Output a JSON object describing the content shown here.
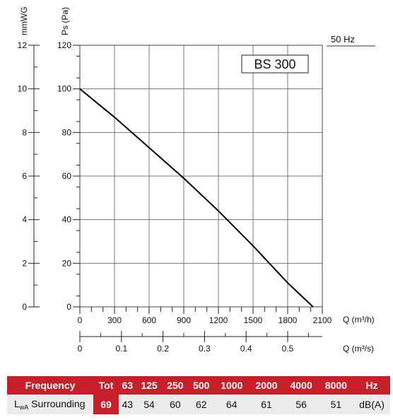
{
  "chart_data": {
    "type": "line",
    "model_label": "BS 300",
    "frequency_label": "50 Hz",
    "axes": {
      "y_pa": {
        "label": "Ps (Pa)",
        "range": [
          0,
          120
        ],
        "ticks": [
          "0",
          "20",
          "40",
          "60",
          "80",
          "100",
          "120"
        ]
      },
      "y_mmwg": {
        "label": "mmWG",
        "range": [
          0,
          12
        ],
        "ticks": [
          "0",
          "2",
          "4",
          "6",
          "8",
          "10",
          "12"
        ]
      },
      "x_m3h": {
        "label": "Q (m³/h)",
        "range": [
          0,
          2100
        ],
        "ticks": [
          "0",
          "300",
          "600",
          "900",
          "1200",
          "1500",
          "1800",
          "2100"
        ]
      },
      "x_m3s": {
        "label": "Q (m³/s)",
        "ticks": [
          "0",
          "0.1",
          "0.2",
          "0.3",
          "0.4",
          "0.5"
        ]
      }
    },
    "grid": true,
    "series": [
      {
        "x": [
          0,
          300,
          600,
          900,
          1200,
          1500,
          1800,
          2020
        ],
        "y": [
          100,
          87,
          73,
          59,
          44,
          28,
          11,
          0
        ]
      }
    ]
  },
  "table": {
    "header": {
      "frequency": "Frequency",
      "tot": "Tot",
      "bands": [
        "63",
        "125",
        "250",
        "500",
        "1000",
        "2000",
        "4000",
        "8000"
      ],
      "unit": "Hz"
    },
    "row": {
      "label_l": "L",
      "label_sub": "wA",
      "label_rest": " Surrounding",
      "tot": "69",
      "values": [
        "43",
        "54",
        "60",
        "62",
        "64",
        "61",
        "56",
        "51"
      ],
      "unit": "dB(A)"
    }
  },
  "colors": {
    "accent": "#c8202b",
    "row_bg": "#eaebec",
    "curve": "#000000",
    "grid": "#777777"
  }
}
